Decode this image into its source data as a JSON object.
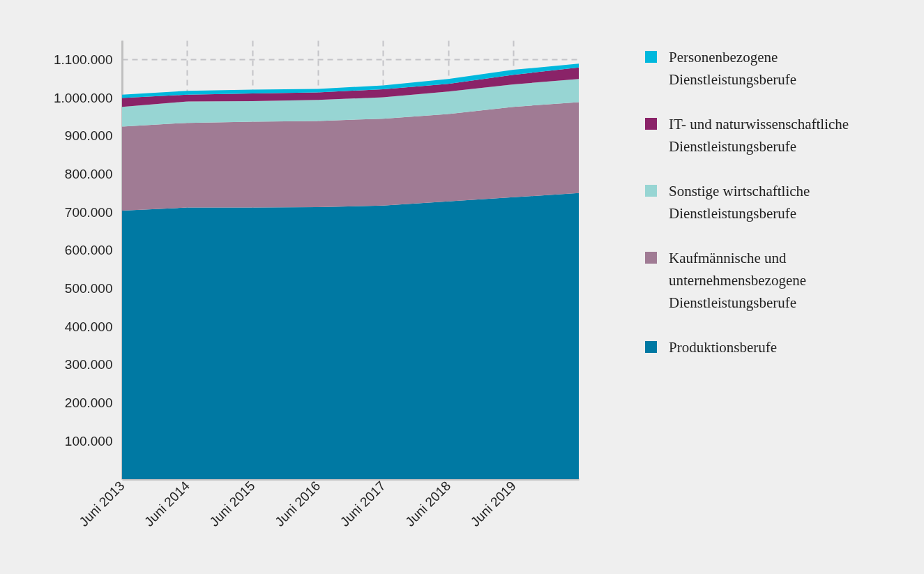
{
  "chart_data": {
    "type": "area",
    "stacked": true,
    "x": [
      "2013-06",
      "2014-06",
      "2015-06",
      "2016-06",
      "2017-06",
      "2018-06",
      "2019-06",
      "2020-06"
    ],
    "xlim": [
      "2013-06",
      "2020-06"
    ],
    "xticks": [
      {
        "value": "2013-06",
        "label": "Juni 2013"
      },
      {
        "value": "2014-06",
        "label": "Juni 2014"
      },
      {
        "value": "2015-06",
        "label": "Juni 2015"
      },
      {
        "value": "2016-06",
        "label": "Juni 2016"
      },
      {
        "value": "2017-06",
        "label": "Juni 2017"
      },
      {
        "value": "2018-06",
        "label": "Juni 2018"
      },
      {
        "value": "2019-06",
        "label": "Juni 2019"
      }
    ],
    "ylim": [
      0,
      1150000
    ],
    "yticks": [
      {
        "value": 100000,
        "label": "100.000"
      },
      {
        "value": 200000,
        "label": "200.000"
      },
      {
        "value": 300000,
        "label": "300.000"
      },
      {
        "value": 400000,
        "label": "400.000"
      },
      {
        "value": 500000,
        "label": "500.000"
      },
      {
        "value": 600000,
        "label": "600.000"
      },
      {
        "value": 700000,
        "label": "700.000"
      },
      {
        "value": 800000,
        "label": "800.000"
      },
      {
        "value": 900000,
        "label": "900.000"
      },
      {
        "value": 1000000,
        "label": "1.000.000"
      },
      {
        "value": 1100000,
        "label": "1.100.000"
      }
    ],
    "grid": true,
    "legend": "right",
    "series": [
      {
        "name": "Produktionsberufe",
        "color": "#0079a3",
        "values": [
          704000,
          712000,
          712000,
          713000,
          717000,
          728000,
          739000,
          750000
        ]
      },
      {
        "name": "Kaufmännische und unternehmensbezogene Dienstleistungsberufe",
        "color": "#a07b94",
        "values": [
          220000,
          222000,
          225000,
          226000,
          228000,
          229000,
          237000,
          238000
        ]
      },
      {
        "name": "Sonstige wirtschaftliche Dienstleistungsberufe",
        "color": "#97d5d3",
        "values": [
          52000,
          56000,
          54000,
          55000,
          56000,
          59000,
          59000,
          61000
        ]
      },
      {
        "name": "IT- und naturwissenschaftliche Dienstleistungsberufe",
        "color": "#8a2368",
        "values": [
          23000,
          18000,
          20000,
          20000,
          21000,
          20000,
          25000,
          30000
        ]
      },
      {
        "name": "Personenbezogene Dienstleistungsberufe",
        "color": "#00b8dd",
        "values": [
          9000,
          10000,
          10000,
          9000,
          10000,
          13000,
          13000,
          10000
        ]
      }
    ]
  }
}
